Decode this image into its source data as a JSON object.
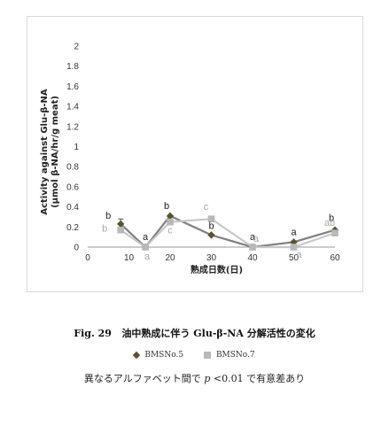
{
  "chart_data": {
    "type": "line",
    "x_label": "熟成日数(日)",
    "y_label_lines": [
      "Activity against Glu-β-NA",
      "(μmol β-NA/hr/g meat)"
    ],
    "x_ticks": [
      0,
      10,
      20,
      30,
      40,
      50,
      60
    ],
    "y_ticks": [
      "0",
      "0.2",
      "0.4",
      "0.6",
      "0.8",
      "1",
      "1.2",
      "1.4",
      "1.6",
      "1.8",
      "2"
    ],
    "xlim": [
      0,
      60
    ],
    "ylim": [
      0,
      2
    ],
    "grid": false,
    "legend_position": "bottom",
    "series": [
      {
        "name": "BMSNo.5",
        "color": "#7f7f7f",
        "marker": "diamond",
        "marker_color": "#5b5030",
        "points": [
          {
            "x": 8,
            "y": 0.23,
            "err": 0.05,
            "label": "b"
          },
          {
            "x": 14,
            "y": 0.0,
            "label": "a"
          },
          {
            "x": 20,
            "y": 0.31,
            "label": "b"
          },
          {
            "x": 30,
            "y": 0.12,
            "label": "b"
          },
          {
            "x": 40,
            "y": 0.0,
            "label": "a"
          },
          {
            "x": 50,
            "y": 0.05,
            "label": "a"
          },
          {
            "x": 60,
            "y": 0.17,
            "label": "b"
          }
        ]
      },
      {
        "name": "BMSNo.7",
        "color": "#c8c8c8",
        "marker": "square",
        "marker_color": "#b8b8b8",
        "points": [
          {
            "x": 8,
            "y": 0.17,
            "label": "b"
          },
          {
            "x": 14,
            "y": 0.0,
            "label": "a"
          },
          {
            "x": 20,
            "y": 0.25,
            "label": "c"
          },
          {
            "x": 30,
            "y": 0.28,
            "label": "c"
          },
          {
            "x": 40,
            "y": 0.0,
            "label": "a"
          },
          {
            "x": 50,
            "y": 0.0,
            "label": "a"
          },
          {
            "x": 60,
            "y": 0.14,
            "label": "ab"
          }
        ]
      }
    ]
  },
  "caption": {
    "fig_number": "Fig. 29",
    "title": "油中熟成に伴う Glu-β-NA 分解活性の変化"
  },
  "legend": {
    "series_1": "BMSNo.5",
    "series_2": "BMSNo.7"
  },
  "note": {
    "before": "異なるアルファベット間で",
    "p": "p",
    "after": "<0.01 で有意差あり"
  }
}
